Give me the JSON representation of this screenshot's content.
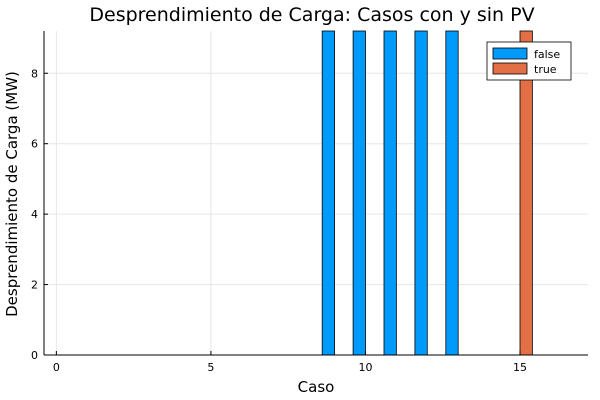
{
  "chart_data": {
    "type": "bar",
    "title": "Desprendimiento de Carga: Casos con y sin PV",
    "xlabel": "Caso",
    "ylabel": "Desprendimiento de Carga (MW)",
    "x_ticks": [
      0,
      5,
      10,
      15
    ],
    "y_ticks": [
      0,
      2,
      4,
      6,
      8
    ],
    "xlim": [
      -0.4,
      17.2
    ],
    "ylim": [
      0,
      9.2
    ],
    "grid": true,
    "legend_position": "top-right",
    "series": [
      {
        "name": "false",
        "color": "#009AFA",
        "x": [
          0,
          1,
          2,
          3,
          4,
          5,
          6,
          7,
          8,
          9,
          10,
          11,
          12,
          13,
          14,
          15,
          16
        ],
        "values": [
          0,
          0,
          0,
          0,
          0,
          0,
          0,
          0,
          0,
          9.2,
          9.2,
          9.2,
          9.2,
          9.2,
          0,
          0,
          0
        ]
      },
      {
        "name": "true",
        "color": "#E26F46",
        "x": [
          0,
          1,
          2,
          3,
          4,
          5,
          6,
          7,
          8,
          9,
          10,
          11,
          12,
          13,
          14,
          15,
          16
        ],
        "values": [
          0,
          0,
          0,
          0,
          0,
          0,
          0,
          0,
          0,
          0,
          0,
          0,
          0,
          0,
          0,
          9.2,
          0
        ]
      }
    ]
  }
}
